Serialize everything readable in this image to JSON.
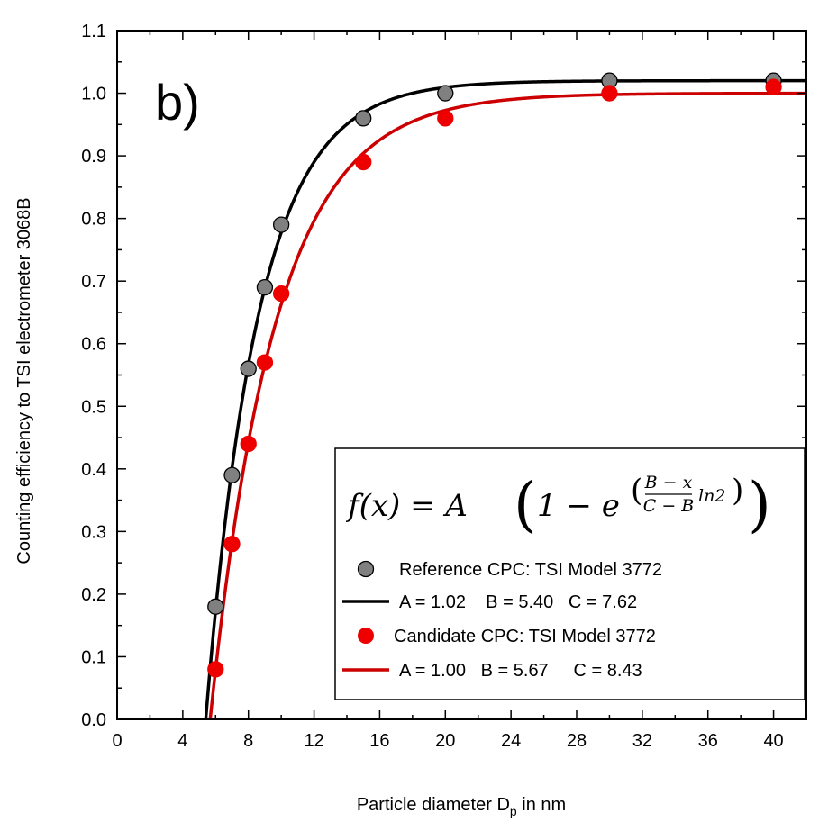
{
  "chart_data": {
    "type": "scatter",
    "panel_label": "b)",
    "xlabel_main": "Particle diameter D",
    "xlabel_sub": "p",
    "xlabel_tail": " in nm",
    "ylabel": "Counting efficiency to TSI electrometer 3068B",
    "xlim": [
      0,
      42
    ],
    "ylim": [
      0,
      1.1
    ],
    "x_ticks": [
      "0",
      "4",
      "8",
      "12",
      "16",
      "20",
      "24",
      "28",
      "32",
      "36",
      "40"
    ],
    "y_ticks": [
      "0.0",
      "0.1",
      "0.2",
      "0.3",
      "0.4",
      "0.5",
      "0.6",
      "0.7",
      "0.8",
      "0.9",
      "1.0",
      "1.1"
    ],
    "grid": false,
    "formula": {
      "lhs": "f(x) = A",
      "one_minus": "1 − e",
      "numerator": "B − x",
      "denominator": "C − B",
      "ln": "ln2"
    },
    "legend_placement": "bottom-right",
    "series": [
      {
        "name": "Reference CPC: TSI Model 3772",
        "kind": "points",
        "color": "#808080",
        "x": [
          6,
          7,
          8,
          9,
          10,
          15,
          20,
          30,
          40
        ],
        "y": [
          0.18,
          0.39,
          0.56,
          0.69,
          0.79,
          0.96,
          1.0,
          1.02,
          1.02
        ]
      },
      {
        "name": "A = 1.02    B = 5.40   C = 7.62",
        "kind": "fit",
        "color": "#000000",
        "A": 1.02,
        "B": 5.4,
        "C": 7.62
      },
      {
        "name": "Candidate CPC: TSI Model 3772",
        "kind": "points",
        "color": "#ee0000",
        "x": [
          6,
          7,
          8,
          9,
          10,
          15,
          20,
          30,
          40
        ],
        "y": [
          0.08,
          0.28,
          0.44,
          0.57,
          0.68,
          0.89,
          0.96,
          1.0,
          1.01
        ]
      },
      {
        "name": "A = 1.00   B = 5.67     C = 8.43",
        "kind": "fit",
        "color": "#cc0000",
        "A": 1.0,
        "B": 5.67,
        "C": 8.43
      }
    ]
  }
}
